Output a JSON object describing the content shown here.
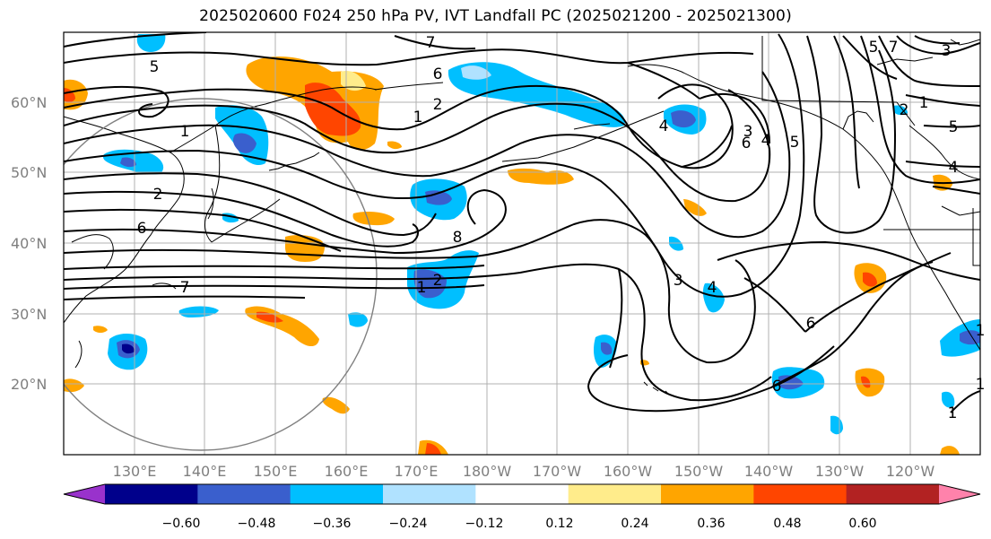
{
  "title": "2025020600 F024 250 hPa PV, IVT Landfall PC (2025021200 - 2025021300)",
  "map": {
    "lat_labels": [
      "60°N",
      "50°N",
      "40°N",
      "30°N",
      "20°N"
    ],
    "lon_labels": [
      "130°E",
      "140°E",
      "150°E",
      "160°E",
      "170°E",
      "180°W",
      "170°W",
      "160°W",
      "150°W",
      "140°W",
      "130°W",
      "120°W"
    ],
    "contour_labels": [
      "5",
      "7",
      "6",
      "1",
      "2",
      "1",
      "2",
      "6",
      "7",
      "1",
      "8",
      "2",
      "4",
      "3",
      "6",
      "4",
      "5",
      "3",
      "4",
      "5",
      "7",
      "3",
      "2",
      "1",
      "5",
      "4",
      "6",
      "6",
      "1",
      "1",
      "1"
    ]
  },
  "colorbar": {
    "colors": [
      "#9932CC",
      "#00008B",
      "#3A5FCD",
      "#00BFFF",
      "#B0E2FF",
      "#FFFFFF",
      "#FFEC8B",
      "#FFA500",
      "#FF4500",
      "#B22222",
      "#FF82AB"
    ],
    "tick_labels": [
      "−0.60",
      "−0.48",
      "−0.36",
      "−0.24",
      "−0.12",
      "0.12",
      "0.24",
      "0.36",
      "0.48",
      "0.60"
    ]
  }
}
